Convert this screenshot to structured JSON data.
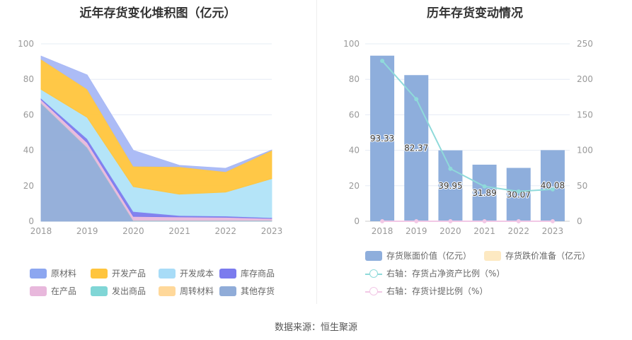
{
  "left": {
    "title": "近年存货变化堆积图（亿元）",
    "chart_data": {
      "type": "area",
      "stacked": true,
      "categories": [
        "2018",
        "2019",
        "2020",
        "2021",
        "2022",
        "2023"
      ],
      "ylim": [
        0,
        100
      ],
      "yticks": [
        0,
        20,
        40,
        60,
        80,
        100
      ],
      "series": [
        {
          "name": "其他存货",
          "color": "#90acd8",
          "values": [
            66.5,
            41.5,
            0.3,
            0.3,
            0.3,
            0.3
          ]
        },
        {
          "name": "周转材料",
          "color": "#ffd89a",
          "values": [
            0.1,
            0.1,
            0.1,
            0.1,
            0.1,
            0.1
          ]
        },
        {
          "name": "发出商品",
          "color": "#80d6d6",
          "values": [
            0.1,
            0.1,
            0.1,
            0.1,
            0.1,
            0.1
          ]
        },
        {
          "name": "在产品",
          "color": "#e8b8dc",
          "values": [
            1.8,
            2.6,
            2.2,
            1.9,
            1.7,
            1.0
          ]
        },
        {
          "name": "库存商品",
          "color": "#7b7bee",
          "values": [
            0.8,
            2.2,
            2.8,
            0.8,
            0.7,
            0.5
          ]
        },
        {
          "name": "开发成本",
          "color": "#b0e3f8",
          "values": [
            5.0,
            12.0,
            14.0,
            12.0,
            13.5,
            22.0
          ]
        },
        {
          "name": "开发产品",
          "color": "#ffc53d",
          "values": [
            17.0,
            16.0,
            11.5,
            15.5,
            11.5,
            16.0
          ]
        },
        {
          "name": "原材料",
          "color": "#a8b8f5",
          "values": [
            1.8,
            8.0,
            9.0,
            0.8,
            2.0,
            0.2
          ]
        }
      ]
    },
    "legend": [
      {
        "name": "原材料",
        "color": "#8ca6f0"
      },
      {
        "name": "开发产品",
        "color": "#ffc53d"
      },
      {
        "name": "开发成本",
        "color": "#a8dcf7"
      },
      {
        "name": "库存商品",
        "color": "#7b7bee"
      },
      {
        "name": "在产品",
        "color": "#e8b8dc"
      },
      {
        "name": "发出商品",
        "color": "#80d6d6"
      },
      {
        "name": "周转材料",
        "color": "#ffd89a"
      },
      {
        "name": "其他存货",
        "color": "#90acd8"
      }
    ]
  },
  "right": {
    "title": "历年存货变动情况",
    "chart_data": {
      "type": "bar",
      "categories": [
        "2018",
        "2019",
        "2020",
        "2021",
        "2022",
        "2023"
      ],
      "ylim_left": [
        0,
        100
      ],
      "yticks_left": [
        0,
        20,
        40,
        60,
        80,
        100
      ],
      "ylim_right": [
        0,
        250
      ],
      "yticks_right": [
        0,
        50,
        100,
        150,
        200,
        250
      ],
      "bars": {
        "name": "存货账面价值（亿元）",
        "color": "#8eaedc",
        "values": [
          93.33,
          82.37,
          39.95,
          31.89,
          30.07,
          40.08
        ],
        "labels": [
          "93.33",
          "82.37",
          "39.95",
          "31.89",
          "30.07",
          "40.08"
        ]
      },
      "bars2": {
        "name": "存货跌价准备（亿元）",
        "color": "#fde9c2",
        "values": [
          0,
          0,
          0,
          0,
          0,
          0
        ]
      },
      "line1": {
        "name": "右轴：存货占净资产比例（%）",
        "color": "#8fdada",
        "values": [
          226,
          172,
          74,
          49,
          42,
          45
        ]
      },
      "line2": {
        "name": "右轴：存货计提比例（%）",
        "color": "#f2c8e6",
        "values": [
          0,
          0,
          0,
          0,
          0,
          0
        ]
      }
    }
  },
  "footer": "数据来源：恒生聚源"
}
